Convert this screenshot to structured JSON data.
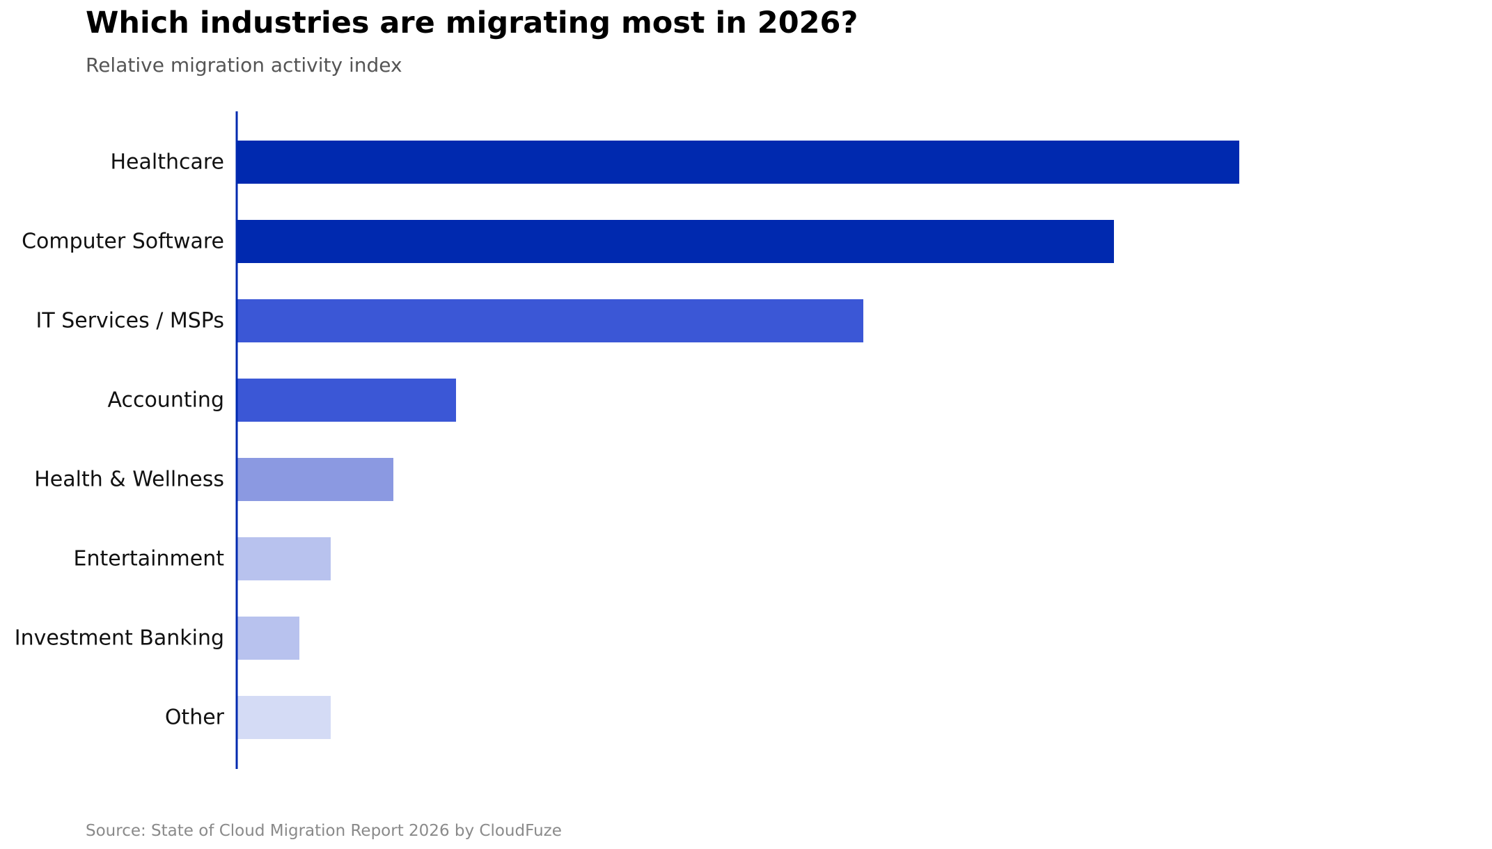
{
  "chart_data": {
    "type": "bar",
    "orientation": "horizontal",
    "title": "Which industries are migrating most in 2026?",
    "subtitle": "Relative migration activity index",
    "source": "Source: State of Cloud Migration Report 2026 by CloudFuze",
    "categories": [
      "Healthcare",
      "Computer Software",
      "IT Services / MSPs",
      "Accounting",
      "Health & Wellness",
      "Entertainment",
      "Investment Banking",
      "Other"
    ],
    "values": [
      32,
      28,
      20,
      7,
      5,
      3,
      2,
      3
    ],
    "colors": [
      "#0029af",
      "#0029af",
      "#3b57d6",
      "#3b57d6",
      "#8b99e1",
      "#b8c2ee",
      "#b8c2ee",
      "#d4dbf5"
    ],
    "axis_color": "#0029af",
    "xlim": [
      0,
      40
    ],
    "grid": false,
    "legend": "none"
  }
}
